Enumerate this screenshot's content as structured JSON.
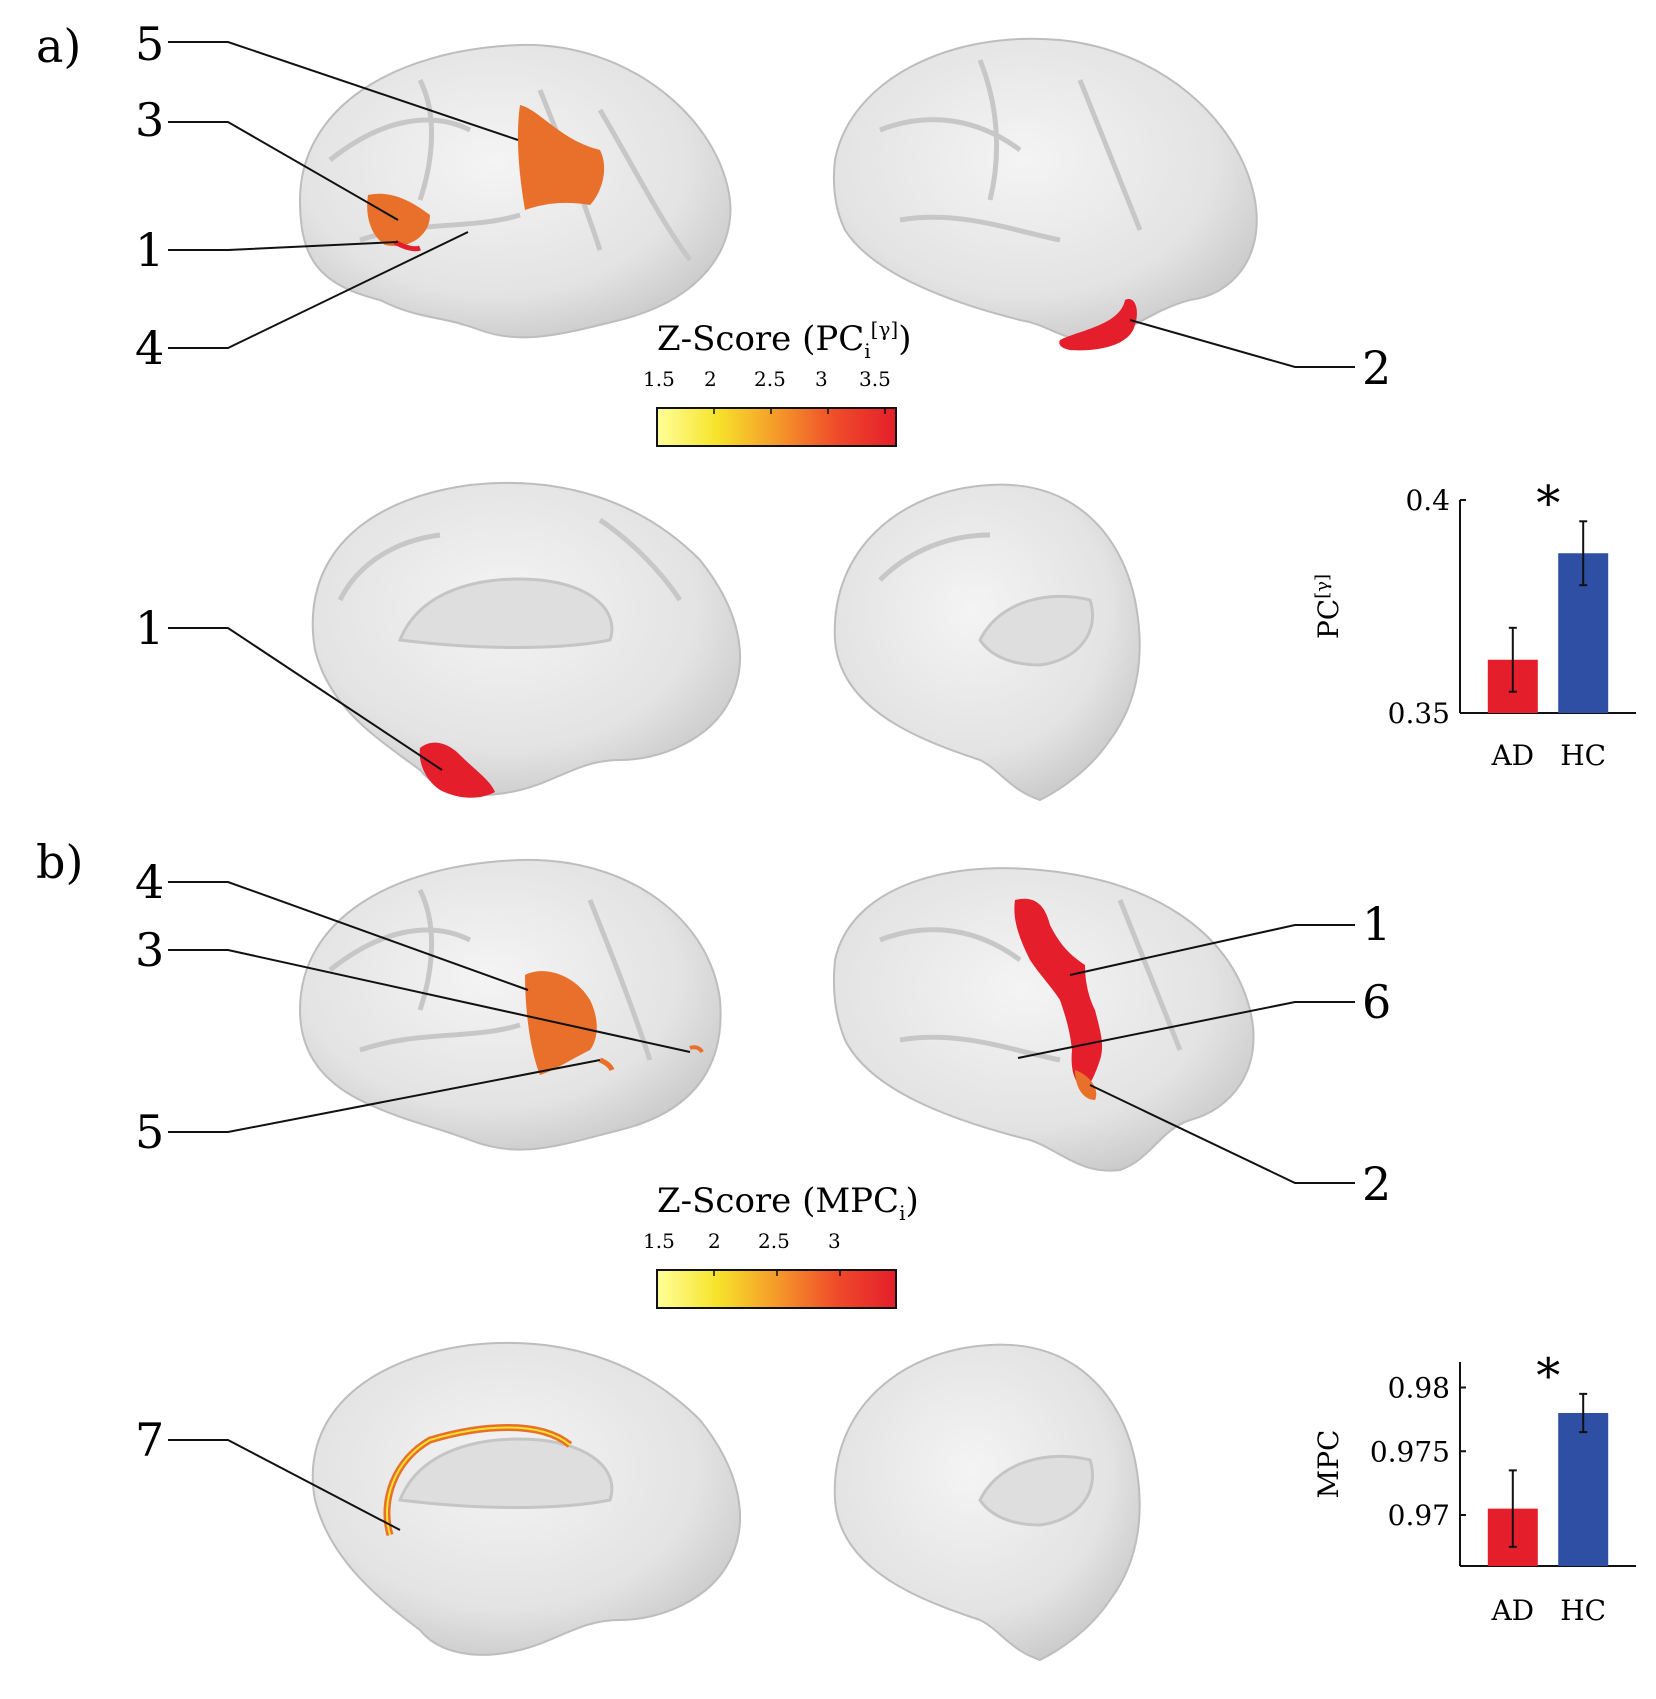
{
  "panels": [
    {
      "tag": "a)",
      "colorbar": {
        "title": "Z-Score (PC",
        "sub": "i",
        "sup": "[γ]",
        "close": ")",
        "ticks": [
          "1.5",
          "2",
          "2.5",
          "3",
          "3.5"
        ]
      },
      "lateral_left_labels": [
        "5",
        "3",
        "1",
        "4"
      ],
      "lateral_right_labels": [
        "2"
      ],
      "medial_left_labels": [
        "1"
      ],
      "medial_right_labels": []
    },
    {
      "tag": "b)",
      "colorbar": {
        "title": "Z-Score (MPC",
        "sub": "i",
        "sup": "",
        "close": ")",
        "ticks": [
          "1.5",
          "2",
          "2.5",
          "3"
        ]
      },
      "lateral_left_labels": [
        "4",
        "3",
        "5"
      ],
      "lateral_right_labels": [
        "1",
        "6",
        "2"
      ],
      "medial_left_labels": [
        "7"
      ],
      "medial_right_labels": []
    }
  ],
  "chart_data": [
    {
      "type": "bar",
      "categories": [
        "AD",
        "HC"
      ],
      "values": [
        0.3625,
        0.3875
      ],
      "errors": [
        0.0075,
        0.0075
      ],
      "ylabel": "PC",
      "ylabel_sup": "[γ]",
      "ylim": [
        0.35,
        0.4
      ],
      "yticks": [
        "0.35",
        "0.4"
      ],
      "significance": "*",
      "colors": [
        "#e41e2b",
        "#2e4fa3"
      ]
    },
    {
      "type": "bar",
      "categories": [
        "AD",
        "HC"
      ],
      "values": [
        0.9705,
        0.978
      ],
      "errors": [
        0.003,
        0.0015
      ],
      "ylabel": "MPC",
      "ylabel_sup": "",
      "ylim": [
        0.966,
        0.982
      ],
      "yticks": [
        "0.97",
        "0.975",
        "0.98"
      ],
      "significance": "*",
      "colors": [
        "#e41e2b",
        "#2e4fa3"
      ]
    }
  ]
}
